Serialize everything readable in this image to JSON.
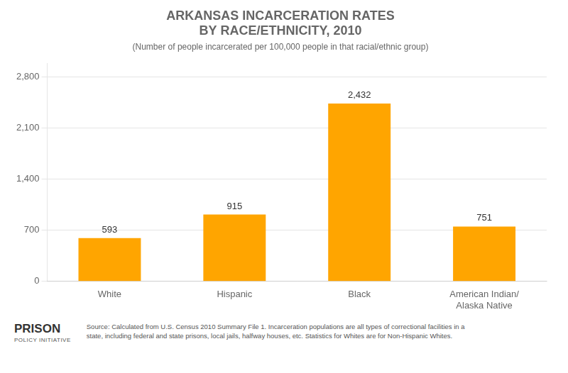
{
  "chart_data": {
    "type": "bar",
    "title": [
      "ARKANSAS INCARCERATION RATES",
      "BY RACE/ETHNICITY, 2010"
    ],
    "subtitle": "(Number of people incarcerated per 100,000 people in that racial/ethnic group)",
    "categories": [
      "White",
      "Hispanic",
      "Black",
      "American Indian/\nAlaska Native"
    ],
    "values": [
      593,
      915,
      2432,
      751
    ],
    "value_labels": [
      "593",
      "915",
      "2,432",
      "751"
    ],
    "data_labels": true,
    "color": "#FFA500",
    "ylim": [
      0,
      2980
    ],
    "yticks": [
      0,
      700,
      {
        "value": 1400,
        "label": "1,400"
      },
      {
        "value": 2100,
        "label": "2,100"
      },
      {
        "value": 2800,
        "label": "2,800"
      }
    ],
    "grid": true,
    "annotations": [
      "PRISON",
      "POLICY INITIATIVE",
      "Source: Calculated from U.S. Census 2010 Summary File 1. Incarceration populations are all types of correctional facilities in a\nstate, including federal and state prisons, local jails, halfway houses, etc. Statistics for Whites are for Non-Hispanic Whites."
    ]
  }
}
